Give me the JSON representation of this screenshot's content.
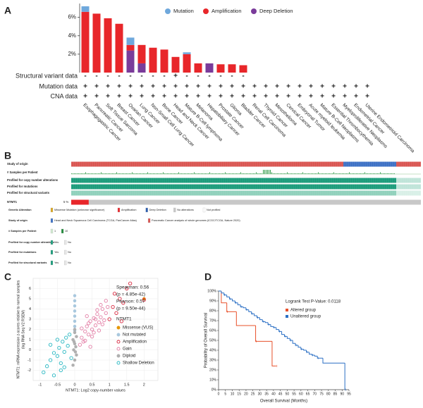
{
  "chart_data": [
    {
      "type": "bar",
      "panel_label": "A",
      "stacked": true,
      "categories": [
        "Esophagogastric Cancer",
        "Pancreatic Cancer",
        "Soft Tissue Sarcoma",
        "Breast Cancer",
        "Ovarian Cancer",
        "Lung Cancer",
        "Non-Small Cell Lung Cancer",
        "Bone Cancer",
        "Head and Neck Cancer",
        "Mature B-Cell lymphoma",
        "Melanoma",
        "Hepatobiliary Cancer",
        "Prostate Cancer",
        "Glioma",
        "Bladder Cancer",
        "Renal Cell Carcinoma",
        "Thyroid Cancer",
        "Mesothelioma",
        "Cervical Cancer",
        "Embryonal Tumor",
        "Acute myeloid leukemia",
        "Mature B-Cell Neoplasms",
        "Essential Thrombocythemia",
        "Myeloproliferative Neoplasms",
        "Endometrial Cancer",
        "Uterine Endometrioid Carcinoma"
      ],
      "series": [
        {
          "name": "Mutation",
          "color": "#6fa8dc",
          "values": [
            0.6,
            0,
            0,
            0,
            0.8,
            0,
            0,
            0,
            0,
            0.2,
            0,
            0,
            0,
            0,
            0,
            0,
            0,
            0,
            0,
            0,
            0,
            0,
            0,
            0,
            0,
            0
          ]
        },
        {
          "name": "Amplification",
          "color": "#e8262a",
          "values": [
            6.6,
            6.4,
            5.9,
            5.3,
            0.6,
            2.0,
            2.7,
            2.5,
            1.7,
            2.0,
            1.0,
            0,
            0.9,
            0.9,
            0.8,
            0,
            0,
            0,
            0,
            0,
            0,
            0,
            0,
            0,
            0,
            0
          ]
        },
        {
          "name": "Deep Deletion",
          "color": "#7a3b9a",
          "values": [
            0,
            0,
            0,
            0,
            2.4,
            1.0,
            0,
            0,
            0,
            0,
            0,
            1.0,
            0,
            0,
            0,
            0,
            0,
            0,
            0,
            0,
            0,
            0,
            0,
            0,
            0,
            0
          ]
        }
      ],
      "ylim": [
        0,
        7.5
      ],
      "yticks": [
        {
          "value": 2,
          "label": "2%"
        },
        {
          "value": 4,
          "label": "4%"
        },
        {
          "value": 6,
          "label": "6%"
        }
      ],
      "rows": [
        {
          "name": "Structural variant data",
          "symbols": [
            "-",
            "-",
            "-",
            "-",
            "-",
            "-",
            "-",
            "-",
            "+",
            "-",
            "-",
            "-",
            "-",
            "-",
            "-",
            null,
            null,
            null,
            null,
            null,
            null,
            null,
            null,
            null,
            null,
            null
          ]
        },
        {
          "name": "Mutation data",
          "symbols": [
            "+",
            "+",
            "+",
            "+",
            "+",
            "+",
            "+",
            "+",
            "+",
            "+",
            "+",
            "+",
            "+",
            "+",
            "+",
            "+",
            "+",
            "+",
            "+",
            "+",
            "+",
            "+",
            "+",
            "+",
            "+",
            "+"
          ]
        },
        {
          "name": "CNA data",
          "symbols": [
            "+",
            "+",
            "+",
            "+",
            "+",
            "+",
            "+",
            "+",
            "+",
            "+",
            "+",
            "+",
            "+",
            "+",
            "+",
            "+",
            "+",
            "+",
            "+",
            "+",
            "+",
            "+",
            "+",
            "+",
            "+",
            "+"
          ]
        }
      ]
    },
    {
      "type": "oncoprint",
      "panel_label": "B",
      "tracks": [
        "Study of origin",
        "# Samples per Patient",
        "Profiled for copy number alterations",
        "Profiled for mutations",
        "Profiled for structural variants"
      ],
      "gene": {
        "name": "NTMT1",
        "value": 5,
        "value_label": "5 %",
        "color": "#e8262a"
      },
      "legend": [
        {
          "title": "Genetic Alteration",
          "items": [
            {
              "label": "Missense Mutation (unknown significance)",
              "color": "#d9a520"
            },
            {
              "label": "Amplification",
              "color": "#e8262a"
            },
            {
              "label": "Deep Deletion",
              "color": "#2a5db0"
            },
            {
              "label": "No alterations",
              "color": "#c8c8c8"
            },
            {
              "label": "Not profiled",
              "color": "#ffffff"
            }
          ]
        },
        {
          "title": "Study of origin",
          "items": [
            {
              "label": "Head and Neck Squamous Cell Carcinoma (TCGA, PanCancer Atlas)",
              "color": "#3b6fc4"
            },
            {
              "label": "Pancreatic Cancer analysis of whole genomes (ICGC/TCGA, Nature 2020)",
              "color": "#d9534f"
            }
          ]
        },
        {
          "title": "# Samples per Patient",
          "items": [
            {
              "label": 1,
              "color": "#cfe8cf"
            },
            {
              "label": 10,
              "color": "#1f8a3a"
            }
          ]
        },
        {
          "title": "Profiled for copy number alterations",
          "items": [
            {
              "label": "Yes",
              "color": "#1a9b7a"
            },
            {
              "label": "No",
              "color": "#e6e6e6"
            }
          ]
        },
        {
          "title": "Profiled for mutations",
          "items": [
            {
              "label": "Yes",
              "color": "#1a9b7a"
            },
            {
              "label": "No",
              "color": "#e6e6e6"
            }
          ]
        },
        {
          "title": "Profiled for structural variants",
          "items": [
            {
              "label": "Yes",
              "color": "#1a9b7a"
            },
            {
              "label": "No",
              "color": "#e6e6e6"
            }
          ]
        }
      ]
    },
    {
      "type": "scatter",
      "panel_label": "C",
      "xlabel": "NTMT1: Log2 copy-number values",
      "ylabel": [
        "NTMT1: mRNA expression z-scores relative to normal samples",
        "(log RNA Seq V2 RSEM)"
      ],
      "xlim": [
        -1.2,
        2.4
      ],
      "xticks": [
        -1,
        -0.5,
        0,
        0.5,
        1,
        1.5,
        2
      ],
      "ylim": [
        -3,
        7
      ],
      "yticks": [
        -2,
        -1,
        0,
        1,
        2,
        3,
        4,
        5,
        6
      ],
      "grid": true,
      "annotations": [
        "Spearman: 0.56",
        "(p = 4.85e-42)",
        "Pearson: 0.57",
        "(p = 9.50e-44)"
      ],
      "legend_title": "NTMT1",
      "series": [
        {
          "name": "Missense (VUS)",
          "color": "#e69500",
          "filled": true,
          "x": [
            2.0
          ],
          "y": [
            5.0
          ]
        },
        {
          "name": "Not mutated",
          "color": "#a9c8de",
          "filled": true,
          "x": [
            0,
            0,
            0,
            0,
            0,
            0,
            0,
            0
          ],
          "y": [
            2.3,
            2.8,
            3.3,
            3.8,
            4.3,
            4.8,
            5.3,
            1.9
          ]
        },
        {
          "name": "Amplification",
          "color": "#d7263d",
          "filled": false,
          "x": [
            1.0,
            1.1,
            1.2,
            1.3,
            1.4,
            1.5,
            1.6,
            1.15,
            1.35,
            2.0
          ],
          "y": [
            3.0,
            4.2,
            3.6,
            5.0,
            4.6,
            6.0,
            6.5,
            5.5,
            2.8,
            4.9
          ]
        },
        {
          "name": "Gain",
          "color": "#e37fa6",
          "filled": false,
          "x": [
            0.15,
            0.2,
            0.25,
            0.3,
            0.35,
            0.4,
            0.45,
            0.5,
            0.55,
            0.6,
            0.65,
            0.7,
            0.75,
            0.8,
            0.85,
            0.9,
            0.95,
            0.2,
            0.3,
            0.4,
            0.5,
            0.6,
            0.7,
            0.8,
            0.9,
            0.35,
            0.55,
            0.75,
            0.45,
            0.65
          ],
          "y": [
            0.5,
            1.2,
            0.8,
            1.8,
            2.3,
            1.5,
            2.8,
            2.0,
            3.1,
            2.4,
            3.5,
            2.7,
            3.2,
            4.0,
            2.9,
            3.6,
            4.2,
            2.1,
            0.9,
            2.6,
            1.3,
            3.0,
            1.9,
            2.5,
            4.8,
            3.3,
            1.7,
            4.4,
            0.3,
            3.9
          ]
        },
        {
          "name": "Diploid",
          "color": "#b0b0b0",
          "filled": true,
          "x": [
            -0.05,
            0,
            0.05,
            -0.03,
            0.03,
            0,
            -0.05,
            0.05,
            0,
            0.02,
            -0.02,
            0
          ],
          "y": [
            -1.5,
            -1.0,
            -0.5,
            0,
            0.3,
            0.6,
            1.0,
            1.3,
            1.7,
            -0.2,
            0.8,
            2.0
          ]
        },
        {
          "name": "Shallow Deletion",
          "color": "#27b7c2",
          "filled": false,
          "x": [
            -0.9,
            -0.8,
            -0.7,
            -0.6,
            -0.5,
            -0.45,
            -0.4,
            -0.35,
            -0.3,
            -0.25,
            -0.2,
            -0.15,
            -0.1,
            -0.6,
            -0.4,
            -0.3,
            -0.7,
            -0.5
          ],
          "y": [
            -2.2,
            -1.6,
            -1.0,
            -2.5,
            -0.6,
            0.2,
            -1.3,
            0.8,
            -0.2,
            1.2,
            0.4,
            1.5,
            -0.8,
            -0.3,
            -2.0,
            -1.7,
            0.5,
            1.0
          ]
        }
      ]
    },
    {
      "type": "line",
      "step": true,
      "panel_label": "D",
      "annotation": "Logrank Test P-Value: 0.0118",
      "xlabel": "Overall Survival (Months)",
      "ylabel": "Probability of Overall Survival",
      "xlim": [
        0,
        95
      ],
      "xticks": [
        0,
        5,
        10,
        15,
        20,
        25,
        30,
        35,
        40,
        45,
        50,
        55,
        60,
        65,
        70,
        75,
        80,
        85,
        90,
        95
      ],
      "ylim": [
        0,
        100
      ],
      "yticks": [
        {
          "value": 0,
          "label": "0%"
        },
        {
          "value": 10,
          "label": "10%"
        },
        {
          "value": 20,
          "label": "20%"
        },
        {
          "value": 30,
          "label": "30%"
        },
        {
          "value": 40,
          "label": "40%"
        },
        {
          "value": 50,
          "label": "50%"
        },
        {
          "value": 60,
          "label": "60%"
        },
        {
          "value": 70,
          "label": "70%"
        },
        {
          "value": 80,
          "label": "80%"
        },
        {
          "value": 90,
          "label": "90%"
        },
        {
          "value": 100,
          "label": "100%"
        }
      ],
      "series": [
        {
          "name": "Altered group",
          "color": "#e8502a",
          "x": [
            0,
            2,
            6,
            13,
            27,
            39,
            42
          ],
          "y": [
            100,
            88,
            79,
            65,
            49,
            24,
            24
          ]
        },
        {
          "name": "Unaltered group",
          "color": "#2a6fc4",
          "x": [
            0,
            2,
            4,
            6,
            8,
            10,
            12,
            14,
            16,
            18,
            20,
            22,
            24,
            26,
            28,
            30,
            32,
            34,
            36,
            38,
            40,
            42,
            44,
            46,
            48,
            50,
            52,
            54,
            56,
            58,
            60,
            62,
            64,
            66,
            68,
            70,
            72,
            76,
            92
          ],
          "y": [
            100,
            98,
            96,
            94,
            92,
            90,
            88,
            86,
            84,
            83,
            81,
            79,
            77,
            75,
            73,
            71,
            69,
            68,
            66,
            64,
            63,
            61,
            59,
            56,
            54,
            52,
            50,
            47,
            45,
            43,
            41,
            40,
            38,
            36,
            35,
            34,
            32,
            27,
            0
          ]
        }
      ]
    }
  ]
}
